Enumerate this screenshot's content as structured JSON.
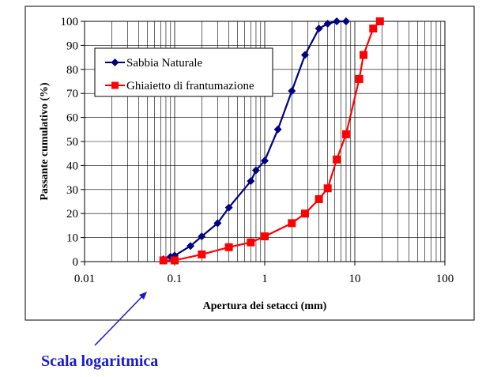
{
  "chart_data": {
    "type": "line",
    "xscale": "log",
    "xlim": [
      0.01,
      100
    ],
    "ylim": [
      0,
      100
    ],
    "xlabel": "Apertura dei setacci (mm)",
    "ylabel": "Passante cumulativo (%)",
    "xticks": [
      "0.01",
      "0.1",
      "1",
      "10",
      "100"
    ],
    "xtick_values": [
      0.01,
      0.1,
      1,
      10,
      100
    ],
    "yticks": [
      "0",
      "10",
      "20",
      "30",
      "40",
      "50",
      "60",
      "70",
      "80",
      "90",
      "100"
    ],
    "grid": true,
    "legend_position": "top-left",
    "series": [
      {
        "name": "Sabbia Naturale",
        "color": "#000080",
        "marker": "diamond",
        "x": [
          0.075,
          0.09,
          0.1,
          0.15,
          0.2,
          0.3,
          0.4,
          0.7,
          0.8,
          1,
          1.4,
          2,
          2.8,
          4,
          5,
          6.3,
          8
        ],
        "y": [
          1,
          2,
          2.5,
          6.5,
          10.5,
          16,
          22.5,
          33.5,
          38,
          42,
          55,
          71,
          86,
          97,
          99,
          100,
          100
        ]
      },
      {
        "name": "Ghiaietto di frantumazione",
        "color": "#ff0000",
        "marker": "square",
        "x": [
          0.075,
          0.1,
          0.2,
          0.4,
          0.7,
          1,
          2,
          2.8,
          4,
          5,
          6.3,
          8,
          11.2,
          12.5,
          16,
          19
        ],
        "y": [
          0.5,
          0.5,
          3,
          6,
          8,
          10.5,
          16,
          20,
          26,
          30.5,
          42.5,
          53,
          76,
          86,
          97,
          100
        ]
      }
    ]
  },
  "annotation": {
    "text": "Scala logaritmica",
    "color": "#1a1acc"
  }
}
